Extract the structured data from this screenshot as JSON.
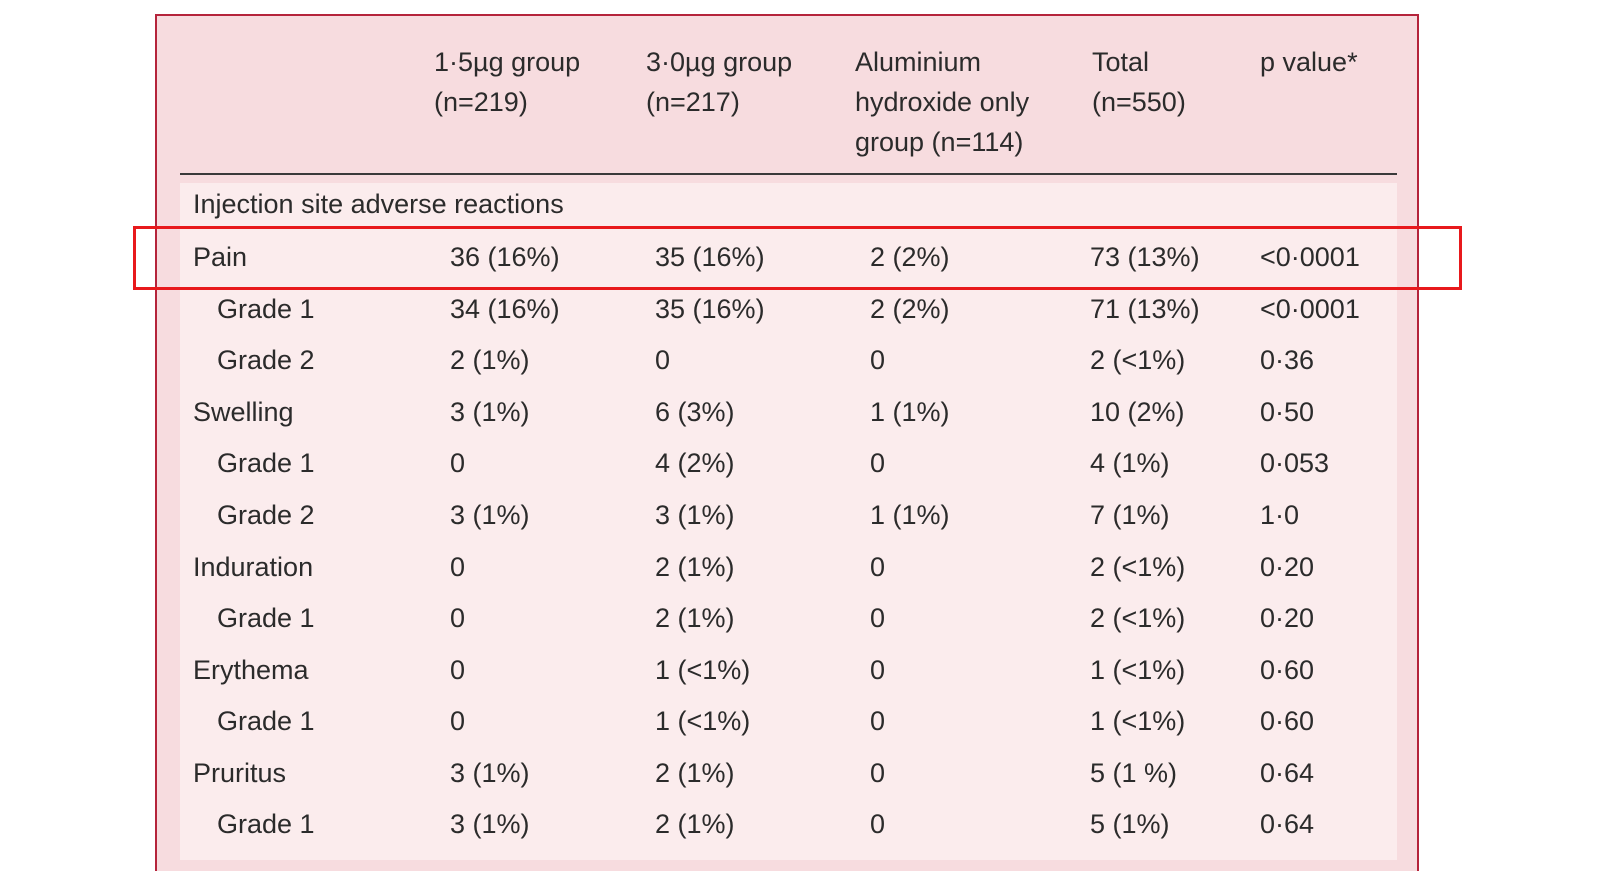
{
  "columns": [
    {
      "lines": [
        "1·5µg group",
        "(n=219)"
      ]
    },
    {
      "lines": [
        "3·0µg group",
        "(n=217)"
      ]
    },
    {
      "lines": [
        "Aluminium",
        "hydroxide only",
        "group (n=114)"
      ]
    },
    {
      "lines": [
        "Total",
        "(n=550)"
      ]
    },
    {
      "lines": [
        "p value*"
      ]
    }
  ],
  "section_title": "Injection site adverse reactions",
  "rows": [
    {
      "label": "Pain",
      "sub": false,
      "values": [
        "36 (16%)",
        "35 (16%)",
        "2 (2%)",
        "73 (13%)",
        "<0·0001"
      ]
    },
    {
      "label": "Grade 1",
      "sub": true,
      "values": [
        "34 (16%)",
        "35 (16%)",
        "2 (2%)",
        "71 (13%)",
        "<0·0001"
      ]
    },
    {
      "label": "Grade 2",
      "sub": true,
      "values": [
        "2 (1%)",
        "0",
        "0",
        "2 (<1%)",
        "0·36"
      ]
    },
    {
      "label": "Swelling",
      "sub": false,
      "values": [
        "3 (1%)",
        "6 (3%)",
        "1 (1%)",
        "10 (2%)",
        "0·50"
      ]
    },
    {
      "label": "Grade 1",
      "sub": true,
      "values": [
        "0",
        "4 (2%)",
        "0",
        "4 (1%)",
        "0·053"
      ]
    },
    {
      "label": "Grade 2",
      "sub": true,
      "values": [
        "3 (1%)",
        "3 (1%)",
        "1 (1%)",
        "7 (1%)",
        "1·0"
      ]
    },
    {
      "label": "Induration",
      "sub": false,
      "values": [
        "0",
        "2 (1%)",
        "0",
        "2 (<1%)",
        "0·20"
      ]
    },
    {
      "label": "Grade 1",
      "sub": true,
      "values": [
        "0",
        "2 (1%)",
        "0",
        "2 (<1%)",
        "0·20"
      ]
    },
    {
      "label": "Erythema",
      "sub": false,
      "values": [
        "0",
        "1 (<1%)",
        "0",
        "1 (<1%)",
        "0·60"
      ]
    },
    {
      "label": "Grade 1",
      "sub": true,
      "values": [
        "0",
        "1 (<1%)",
        "0",
        "1 (<1%)",
        "0·60"
      ]
    },
    {
      "label": "Pruritus",
      "sub": false,
      "values": [
        "3 (1%)",
        "2 (1%)",
        "0",
        "5 (1 %)",
        "0·64"
      ]
    },
    {
      "label": "Grade 1",
      "sub": true,
      "values": [
        "3 (1%)",
        "2 (1%)",
        "0",
        "5 (1%)",
        "0·64"
      ]
    }
  ],
  "colors": {
    "border": "#b5243b",
    "panel": "#f7dcdf",
    "highlight": "#e8191c"
  }
}
